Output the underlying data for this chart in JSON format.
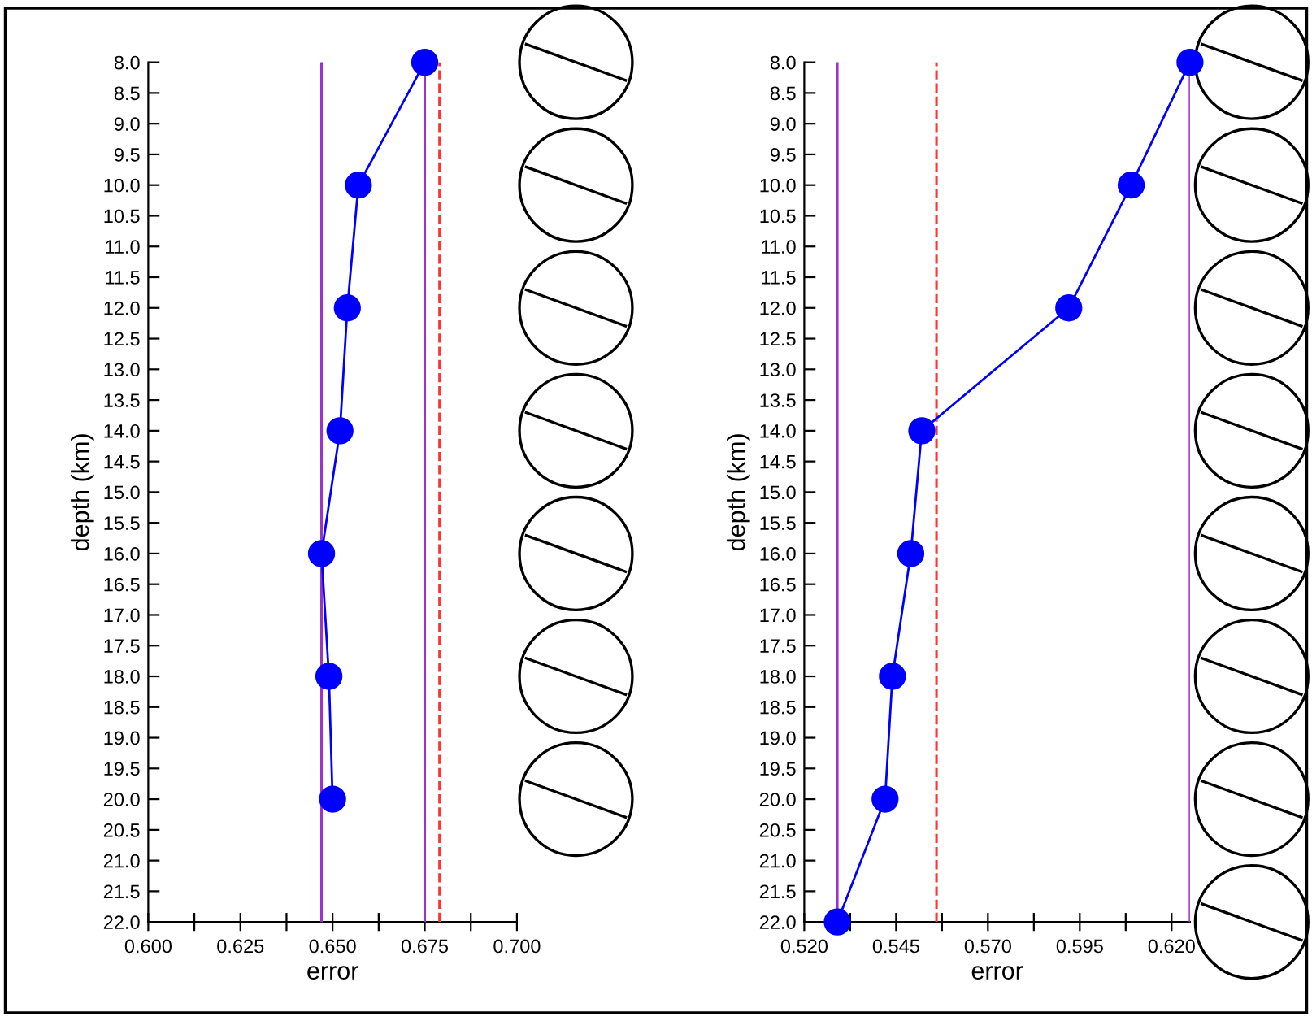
{
  "chart_data": [
    {
      "type": "line",
      "xlabel": "error",
      "ylabel": "depth (km)",
      "marker": "circle",
      "line_style": "solid",
      "x": [
        0.675,
        0.657,
        0.654,
        0.652,
        0.647,
        0.649,
        0.65
      ],
      "series": [
        {
          "color": "#0000ff",
          "values": [
            8,
            10,
            12,
            14,
            16,
            18,
            20
          ]
        }
      ],
      "xlim": [
        0.6,
        0.7
      ],
      "xticks": [
        {
          "value": 0.6,
          "label": "0.600"
        },
        {
          "value": 0.6125,
          "label": null
        },
        {
          "value": 0.625,
          "label": "0.625"
        },
        {
          "value": 0.6375,
          "label": null
        },
        {
          "value": 0.65,
          "label": "0.650"
        },
        {
          "value": 0.6625,
          "label": null
        },
        {
          "value": 0.675,
          "label": "0.675"
        },
        {
          "value": 0.6875,
          "label": null
        },
        {
          "value": 0.7,
          "label": "0.700"
        }
      ],
      "ylim": [
        22,
        8
      ],
      "yticks": [
        {
          "value": 8,
          "label": "8.0"
        },
        {
          "value": 8.5,
          "label": "8.5"
        },
        {
          "value": 9,
          "label": "9.0"
        },
        {
          "value": 9.5,
          "label": "9.5"
        },
        {
          "value": 10,
          "label": "10.0"
        },
        {
          "value": 10.5,
          "label": "10.5"
        },
        {
          "value": 11,
          "label": "11.0"
        },
        {
          "value": 11.5,
          "label": "11.5"
        },
        {
          "value": 12,
          "label": "12.0"
        },
        {
          "value": 12.5,
          "label": "12.5"
        },
        {
          "value": 13,
          "label": "13.0"
        },
        {
          "value": 13.5,
          "label": "13.5"
        },
        {
          "value": 14,
          "label": "14.0"
        },
        {
          "value": 14.5,
          "label": "14.5"
        },
        {
          "value": 15,
          "label": "15.0"
        },
        {
          "value": 15.5,
          "label": "15.5"
        },
        {
          "value": 16,
          "label": "16.0"
        },
        {
          "value": 16.5,
          "label": "16.5"
        },
        {
          "value": 17,
          "label": "17.0"
        },
        {
          "value": 17.5,
          "label": "17.5"
        },
        {
          "value": 18,
          "label": "18.0"
        },
        {
          "value": 18.5,
          "label": "18.5"
        },
        {
          "value": 19,
          "label": "19.0"
        },
        {
          "value": 19.5,
          "label": "19.5"
        },
        {
          "value": 20,
          "label": "20.0"
        },
        {
          "value": 20.5,
          "label": "20.5"
        },
        {
          "value": 21,
          "label": "21.0"
        },
        {
          "value": 21.5,
          "label": "21.5"
        },
        {
          "value": 22,
          "label": "22.0"
        }
      ],
      "ref_lines": [
        {
          "axis": "x",
          "value": 0.647,
          "color": "#9933cc",
          "line_style": "solid"
        },
        {
          "axis": "x",
          "value": 0.675,
          "color": "#9933cc",
          "line_style": "solid"
        },
        {
          "axis": "x",
          "value": 0.679,
          "color": "#ff3333",
          "line_style": "dashed"
        }
      ]
    },
    {
      "type": "line",
      "xlabel": "error",
      "ylabel": "depth (km)",
      "marker": "circle",
      "line_style": "solid",
      "x": [
        0.625,
        0.609,
        0.592,
        0.552,
        0.549,
        0.544,
        0.542,
        0.529
      ],
      "series": [
        {
          "color": "#0000ff",
          "values": [
            8,
            10,
            12,
            14,
            16,
            18,
            20,
            22
          ]
        }
      ],
      "xlim": [
        0.52,
        0.625
      ],
      "xticks": [
        {
          "value": 0.52,
          "label": "0.520"
        },
        {
          "value": 0.5325,
          "label": null
        },
        {
          "value": 0.545,
          "label": "0.545"
        },
        {
          "value": 0.5575,
          "label": null
        },
        {
          "value": 0.57,
          "label": "0.570"
        },
        {
          "value": 0.5825,
          "label": null
        },
        {
          "value": 0.595,
          "label": "0.595"
        },
        {
          "value": 0.6075,
          "label": null
        },
        {
          "value": 0.62,
          "label": "0.620"
        }
      ],
      "ylim": [
        22,
        8
      ],
      "yticks": [
        {
          "value": 8,
          "label": "8.0"
        },
        {
          "value": 8.5,
          "label": "8.5"
        },
        {
          "value": 9,
          "label": "9.0"
        },
        {
          "value": 9.5,
          "label": "9.5"
        },
        {
          "value": 10,
          "label": "10.0"
        },
        {
          "value": 10.5,
          "label": "10.5"
        },
        {
          "value": 11,
          "label": "11.0"
        },
        {
          "value": 11.5,
          "label": "11.5"
        },
        {
          "value": 12,
          "label": "12.0"
        },
        {
          "value": 12.5,
          "label": "12.5"
        },
        {
          "value": 13,
          "label": "13.0"
        },
        {
          "value": 13.5,
          "label": "13.5"
        },
        {
          "value": 14,
          "label": "14.0"
        },
        {
          "value": 14.5,
          "label": "14.5"
        },
        {
          "value": 15,
          "label": "15.0"
        },
        {
          "value": 15.5,
          "label": "15.5"
        },
        {
          "value": 16,
          "label": "16.0"
        },
        {
          "value": 16.5,
          "label": "16.5"
        },
        {
          "value": 17,
          "label": "17.0"
        },
        {
          "value": 17.5,
          "label": "17.5"
        },
        {
          "value": 18,
          "label": "18.0"
        },
        {
          "value": 18.5,
          "label": "18.5"
        },
        {
          "value": 19,
          "label": "19.0"
        },
        {
          "value": 19.5,
          "label": "19.5"
        },
        {
          "value": 20,
          "label": "20.0"
        },
        {
          "value": 20.5,
          "label": "20.5"
        },
        {
          "value": 21,
          "label": "21.0"
        },
        {
          "value": 21.5,
          "label": "21.5"
        },
        {
          "value": 22,
          "label": "22.0"
        }
      ],
      "ref_lines": [
        {
          "axis": "x",
          "value": 0.529,
          "color": "#9933cc",
          "line_style": "solid"
        },
        {
          "axis": "x",
          "value": 0.556,
          "color": "#ff3333",
          "line_style": "dashed"
        },
        {
          "axis": "x",
          "value": 0.625,
          "color": "#9933cc",
          "line_style": "solid"
        }
      ]
    }
  ]
}
